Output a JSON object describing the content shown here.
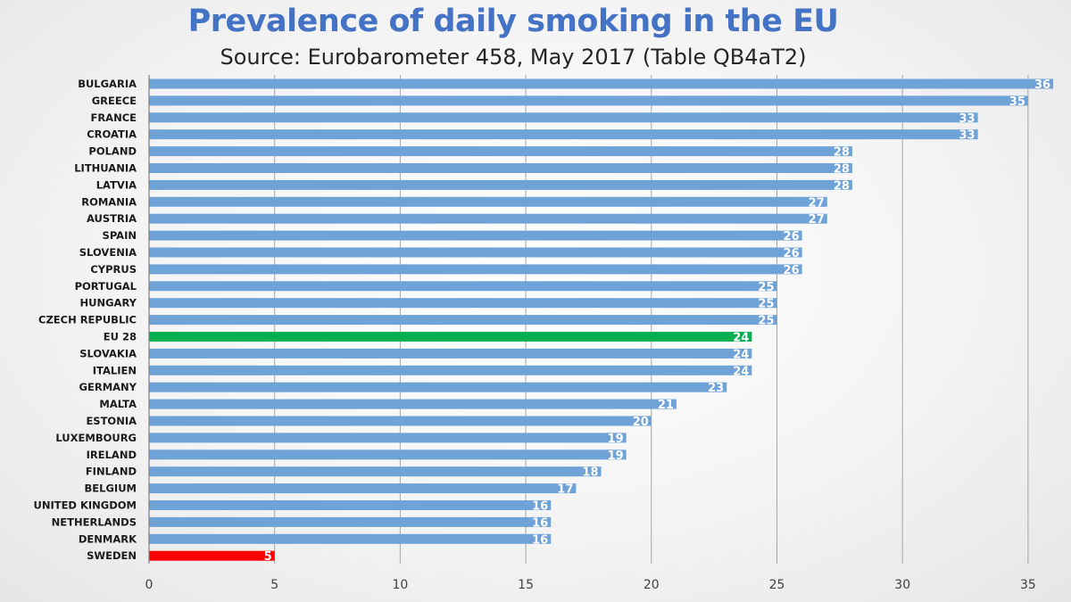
{
  "chart_data": {
    "type": "bar",
    "orientation": "horizontal",
    "title": "Prevalence of daily smoking in the EU",
    "subtitle": "Source: Eurobarometer 458, May 2017 (Table QB4aT2)",
    "categories": [
      "BULGARIA",
      "GREECE",
      "FRANCE",
      "CROATIA",
      "POLAND",
      "LITHUANIA",
      "LATVIA",
      "ROMANIA",
      "AUSTRIA",
      "SPAIN",
      "SLOVENIA",
      "CYPRUS",
      "PORTUGAL",
      "HUNGARY",
      "CZECH REPUBLIC",
      "EU 28",
      "SLOVAKIA",
      "ITALIEN",
      "GERMANY",
      "MALTA",
      "ESTONIA",
      "LUXEMBOURG",
      "IRELAND",
      "FINLAND",
      "BELGIUM",
      "UNITED KINGDOM",
      "NETHERLANDS",
      "DENMARK",
      "SWEDEN"
    ],
    "values": [
      36,
      35,
      33,
      33,
      28,
      28,
      28,
      27,
      27,
      26,
      26,
      26,
      25,
      25,
      25,
      24,
      24,
      24,
      23,
      21,
      20,
      19,
      19,
      18,
      17,
      16,
      16,
      16,
      5
    ],
    "xlim": [
      0,
      36
    ],
    "xticks": [
      0,
      5,
      10,
      15,
      20,
      25,
      30,
      35
    ],
    "grid": "vertical",
    "legend": "none",
    "colors": {
      "default": "#6fa3d8",
      "highlight_eu": "#00b050",
      "highlight_sweden": "#ff0000",
      "title": "#4472c4",
      "grid": "#a6a6a6"
    },
    "highlights": {
      "EU 28": "highlight_eu",
      "SWEDEN": "highlight_sweden"
    }
  }
}
